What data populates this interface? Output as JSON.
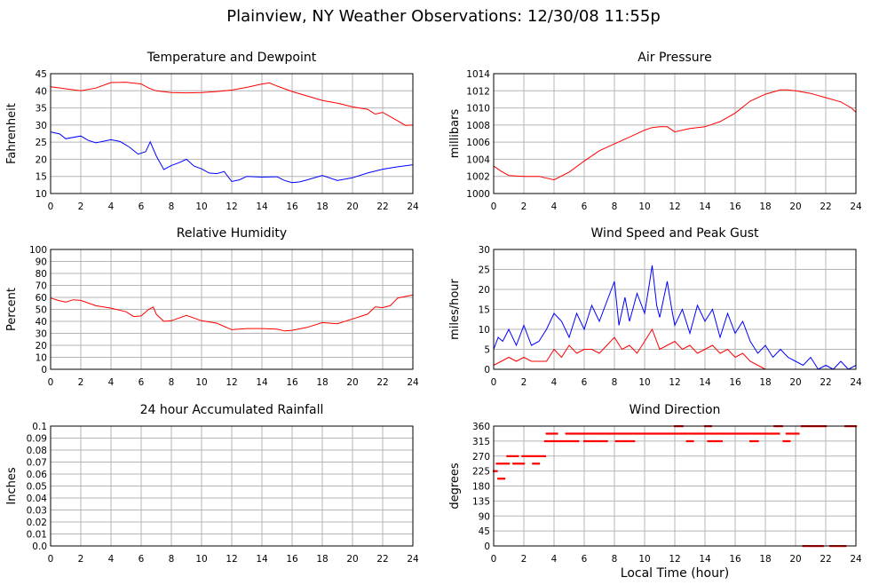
{
  "title": "Plainview, NY Weather Observations: 12/30/08 11:55p",
  "x_axis_label": "Local Time (hour)",
  "colors": {
    "red": "#ff0000",
    "blue": "#0000ff",
    "grid": "#b4b4b4"
  },
  "chart_data": [
    {
      "id": "temp",
      "type": "line",
      "title": "Temperature and Dewpoint",
      "ylabel": "Fahrenheit",
      "xlim": [
        0,
        24
      ],
      "ylim": [
        10,
        45
      ],
      "xticks": [
        0,
        2,
        4,
        6,
        8,
        10,
        12,
        14,
        16,
        18,
        20,
        22,
        24
      ],
      "yticks": [
        10,
        15,
        20,
        25,
        30,
        35,
        40,
        45
      ],
      "grid": true,
      "series": [
        {
          "color": "#ff0000",
          "x": [
            0,
            1,
            2,
            3,
            4,
            5,
            6,
            6.5,
            7,
            8,
            9,
            10,
            11,
            12,
            13,
            14,
            14.5,
            15,
            16,
            17,
            18,
            19,
            20,
            21,
            21.5,
            22,
            23,
            23.5,
            24
          ],
          "y": [
            41.2,
            40.6,
            40.0,
            40.8,
            42.4,
            42.5,
            42.0,
            40.8,
            40.0,
            39.5,
            39.4,
            39.5,
            39.8,
            40.2,
            41.0,
            42.0,
            42.3,
            41.4,
            39.8,
            38.5,
            37.2,
            36.4,
            35.3,
            34.6,
            33.2,
            33.7,
            31.2,
            29.9,
            30.0
          ]
        },
        {
          "color": "#0000ff",
          "x": [
            0,
            0.6,
            1,
            2,
            2.5,
            3,
            4,
            4.6,
            5.2,
            5.8,
            6.3,
            6.6,
            7,
            7.5,
            8,
            8.5,
            9,
            9.5,
            10,
            10.5,
            11,
            11.5,
            12,
            12.5,
            13,
            14,
            15,
            15.5,
            16,
            16.5,
            17,
            18,
            19,
            20,
            21,
            22,
            23,
            24
          ],
          "y": [
            28.0,
            27.4,
            26.0,
            26.8,
            25.5,
            24.8,
            25.7,
            25.2,
            23.6,
            21.5,
            22.2,
            25.1,
            21.0,
            17.0,
            18.2,
            19.0,
            20.0,
            18.0,
            17.2,
            16.0,
            15.8,
            16.4,
            13.5,
            14.0,
            15.0,
            14.8,
            14.9,
            13.8,
            13.2,
            13.4,
            14.0,
            15.3,
            13.8,
            14.6,
            16.0,
            17.1,
            17.8,
            18.4
          ]
        }
      ]
    },
    {
      "id": "pressure",
      "type": "line",
      "title": "Air Pressure",
      "ylabel": "millibars",
      "xlim": [
        0,
        24
      ],
      "ylim": [
        1000,
        1014
      ],
      "xticks": [
        0,
        2,
        4,
        6,
        8,
        10,
        12,
        14,
        16,
        18,
        20,
        22,
        24
      ],
      "yticks": [
        1000,
        1002,
        1004,
        1006,
        1008,
        1010,
        1012,
        1014
      ],
      "grid": true,
      "series": [
        {
          "color": "#ff0000",
          "x": [
            0,
            0.5,
            1,
            2,
            3,
            4,
            5,
            6,
            7,
            8,
            9,
            10,
            10.5,
            11,
            11.5,
            12,
            12.5,
            13,
            14,
            15,
            16,
            17,
            18,
            19,
            19.5,
            20,
            21,
            22,
            23,
            23.7,
            24
          ],
          "y": [
            1003.2,
            1002.6,
            1002.1,
            1002.0,
            1002.0,
            1001.6,
            1002.5,
            1003.8,
            1005.0,
            1005.8,
            1006.6,
            1007.4,
            1007.7,
            1007.8,
            1007.8,
            1007.2,
            1007.4,
            1007.6,
            1007.8,
            1008.4,
            1009.4,
            1010.8,
            1011.6,
            1012.1,
            1012.1,
            1012.0,
            1011.7,
            1011.2,
            1010.7,
            1010.0,
            1009.5
          ]
        }
      ]
    },
    {
      "id": "humidity",
      "type": "line",
      "title": "Relative Humidity",
      "ylabel": "Percent",
      "xlim": [
        0,
        24
      ],
      "ylim": [
        0,
        100
      ],
      "xticks": [
        0,
        2,
        4,
        6,
        8,
        10,
        12,
        14,
        16,
        18,
        20,
        22,
        24
      ],
      "yticks": [
        0,
        10,
        20,
        30,
        40,
        50,
        60,
        70,
        80,
        90,
        100
      ],
      "grid": true,
      "series": [
        {
          "color": "#ff0000",
          "x": [
            0,
            0.5,
            1,
            1.5,
            2,
            3,
            4,
            5,
            5.5,
            6,
            6.5,
            6.8,
            7,
            7.5,
            8,
            9,
            10,
            11,
            12,
            13,
            14,
            15,
            15.5,
            16,
            17,
            18,
            19,
            20,
            21,
            21.5,
            22,
            22.5,
            23,
            24
          ],
          "y": [
            59.5,
            57.5,
            56.0,
            58.0,
            57.5,
            53.0,
            51.0,
            48.0,
            44.0,
            44.5,
            50.0,
            52.0,
            46.0,
            40.0,
            40.5,
            45.0,
            40.5,
            38.5,
            33.0,
            34.0,
            34.0,
            33.5,
            32.0,
            32.5,
            35.0,
            39.0,
            38.0,
            42.0,
            46.0,
            52.0,
            51.5,
            53.0,
            59.5,
            62.0
          ]
        }
      ]
    },
    {
      "id": "wind",
      "type": "line",
      "title": "Wind Speed and Peak Gust",
      "ylabel": "miles/hour",
      "xlim": [
        0,
        24
      ],
      "ylim": [
        0,
        30
      ],
      "xticks": [
        0,
        2,
        4,
        6,
        8,
        10,
        12,
        14,
        16,
        18,
        20,
        22,
        24
      ],
      "yticks": [
        0,
        5,
        10,
        15,
        20,
        25,
        30
      ],
      "grid": true,
      "series": [
        {
          "color": "#0000ff",
          "x": [
            0,
            0.3,
            0.6,
            1,
            1.5,
            2,
            2.5,
            3,
            3.5,
            4,
            4.5,
            5,
            5.5,
            6,
            6.5,
            7,
            7.5,
            8,
            8.3,
            8.7,
            9,
            9.5,
            10,
            10.3,
            10.5,
            10.8,
            11,
            11.5,
            11.8,
            12,
            12.5,
            13,
            13.5,
            14,
            14.5,
            15,
            15.5,
            16,
            16.5,
            17,
            17.5,
            18,
            18.5,
            19,
            19.5,
            20,
            20.5,
            21,
            21.5,
            22,
            22.5,
            23,
            23.5,
            24
          ],
          "y": [
            5,
            8,
            7,
            10,
            6,
            11,
            6,
            7,
            10,
            14,
            12,
            8,
            14,
            10,
            16,
            12,
            17,
            22,
            11,
            18,
            12,
            19,
            14,
            21,
            26,
            16,
            13,
            22,
            15,
            11,
            15,
            9,
            16,
            12,
            15,
            8,
            14,
            9,
            12,
            7,
            4,
            6,
            3,
            5,
            3,
            2,
            1,
            3,
            0,
            1,
            0,
            2,
            0,
            1
          ]
        },
        {
          "color": "#ff0000",
          "x": [
            0,
            0.5,
            1,
            1.5,
            2,
            2.5,
            3,
            3.5,
            4,
            4.5,
            5,
            5.5,
            6,
            6.5,
            7,
            7.5,
            8,
            8.5,
            9,
            9.5,
            10,
            10.5,
            11,
            11.5,
            12,
            12.5,
            13,
            13.5,
            14,
            14.5,
            15,
            15.5,
            16,
            16.5,
            17,
            17.5,
            18,
            19,
            20,
            21,
            22,
            23,
            24
          ],
          "y": [
            1,
            2,
            3,
            2,
            3,
            2,
            2,
            2,
            5,
            3,
            6,
            4,
            5,
            5,
            4,
            6,
            8,
            5,
            6,
            4,
            7,
            10,
            5,
            6,
            7,
            5,
            6,
            4,
            5,
            6,
            4,
            5,
            3,
            4,
            2,
            1,
            0,
            0,
            0,
            0,
            0,
            0,
            0
          ]
        }
      ]
    },
    {
      "id": "rain",
      "type": "line",
      "title": "24 hour Accumulated Rainfall",
      "ylabel": "Inches",
      "xlim": [
        0,
        24
      ],
      "ylim": [
        0,
        0.1
      ],
      "xticks": [
        0,
        2,
        4,
        6,
        8,
        10,
        12,
        14,
        16,
        18,
        20,
        22,
        24
      ],
      "yticks": [
        "0.0",
        "0.01",
        "0.02",
        "0.03",
        "0.04",
        "0.05",
        "0.06",
        "0.07",
        "0.08",
        "0.09",
        "0.1"
      ],
      "grid": true,
      "series": [
        {
          "color": "#ff0000",
          "x": [
            0,
            24
          ],
          "y": [
            0,
            0
          ]
        }
      ]
    },
    {
      "id": "direction",
      "type": "scatter",
      "title": "Wind Direction",
      "ylabel": "degrees",
      "xlabel": "Local Time (hour)",
      "xlim": [
        0,
        24
      ],
      "ylim": [
        0,
        360
      ],
      "xticks": [
        0,
        2,
        4,
        6,
        8,
        10,
        12,
        14,
        16,
        18,
        20,
        22,
        24
      ],
      "yticks": [
        0,
        45,
        90,
        135,
        180,
        225,
        270,
        315,
        360
      ],
      "grid": true,
      "series": [
        {
          "color": "#ff0000",
          "runs": [
            {
              "y": 225,
              "x": [
                0,
                0.2
              ]
            },
            {
              "y": 202.5,
              "x": [
                0.3,
                0.7
              ]
            },
            {
              "y": 247.5,
              "x": [
                0.2,
                1.0
              ]
            },
            {
              "y": 270,
              "x": [
                0.9,
                1.6
              ]
            },
            {
              "y": 247.5,
              "x": [
                1.3,
                2.0
              ]
            },
            {
              "y": 247.5,
              "x": [
                2.6,
                3.0
              ]
            },
            {
              "y": 270,
              "x": [
                1.9,
                3.4
              ]
            },
            {
              "y": 315,
              "x": [
                3.4,
                5.6
              ]
            },
            {
              "y": 337.5,
              "x": [
                3.5,
                4.2
              ]
            },
            {
              "y": 337.5,
              "x": [
                4.8,
                18.9
              ]
            },
            {
              "y": 315,
              "x": [
                6.0,
                7.5
              ]
            },
            {
              "y": 315,
              "x": [
                8.1,
                9.3
              ]
            },
            {
              "y": 315,
              "x": [
                12.8,
                13.2
              ]
            },
            {
              "y": 315,
              "x": [
                14.2,
                15.1
              ]
            },
            {
              "y": 315,
              "x": [
                17.0,
                17.5
              ]
            },
            {
              "y": 360,
              "x": [
                12.0,
                12.5
              ]
            },
            {
              "y": 360,
              "x": [
                14.0,
                14.4
              ]
            },
            {
              "y": 360,
              "x": [
                18.6,
                19.1
              ]
            },
            {
              "y": 315,
              "x": [
                19.2,
                19.6
              ]
            },
            {
              "y": 337.5,
              "x": [
                19.4,
                20.2
              ]
            },
            {
              "y": 360,
              "x": [
                20.4,
                22.0
              ]
            },
            {
              "y": 0,
              "x": [
                20.5,
                21.8
              ]
            },
            {
              "y": 0,
              "x": [
                22.3,
                23.3
              ]
            },
            {
              "y": 360,
              "x": [
                23.3,
                24.0
              ]
            }
          ]
        }
      ]
    }
  ]
}
